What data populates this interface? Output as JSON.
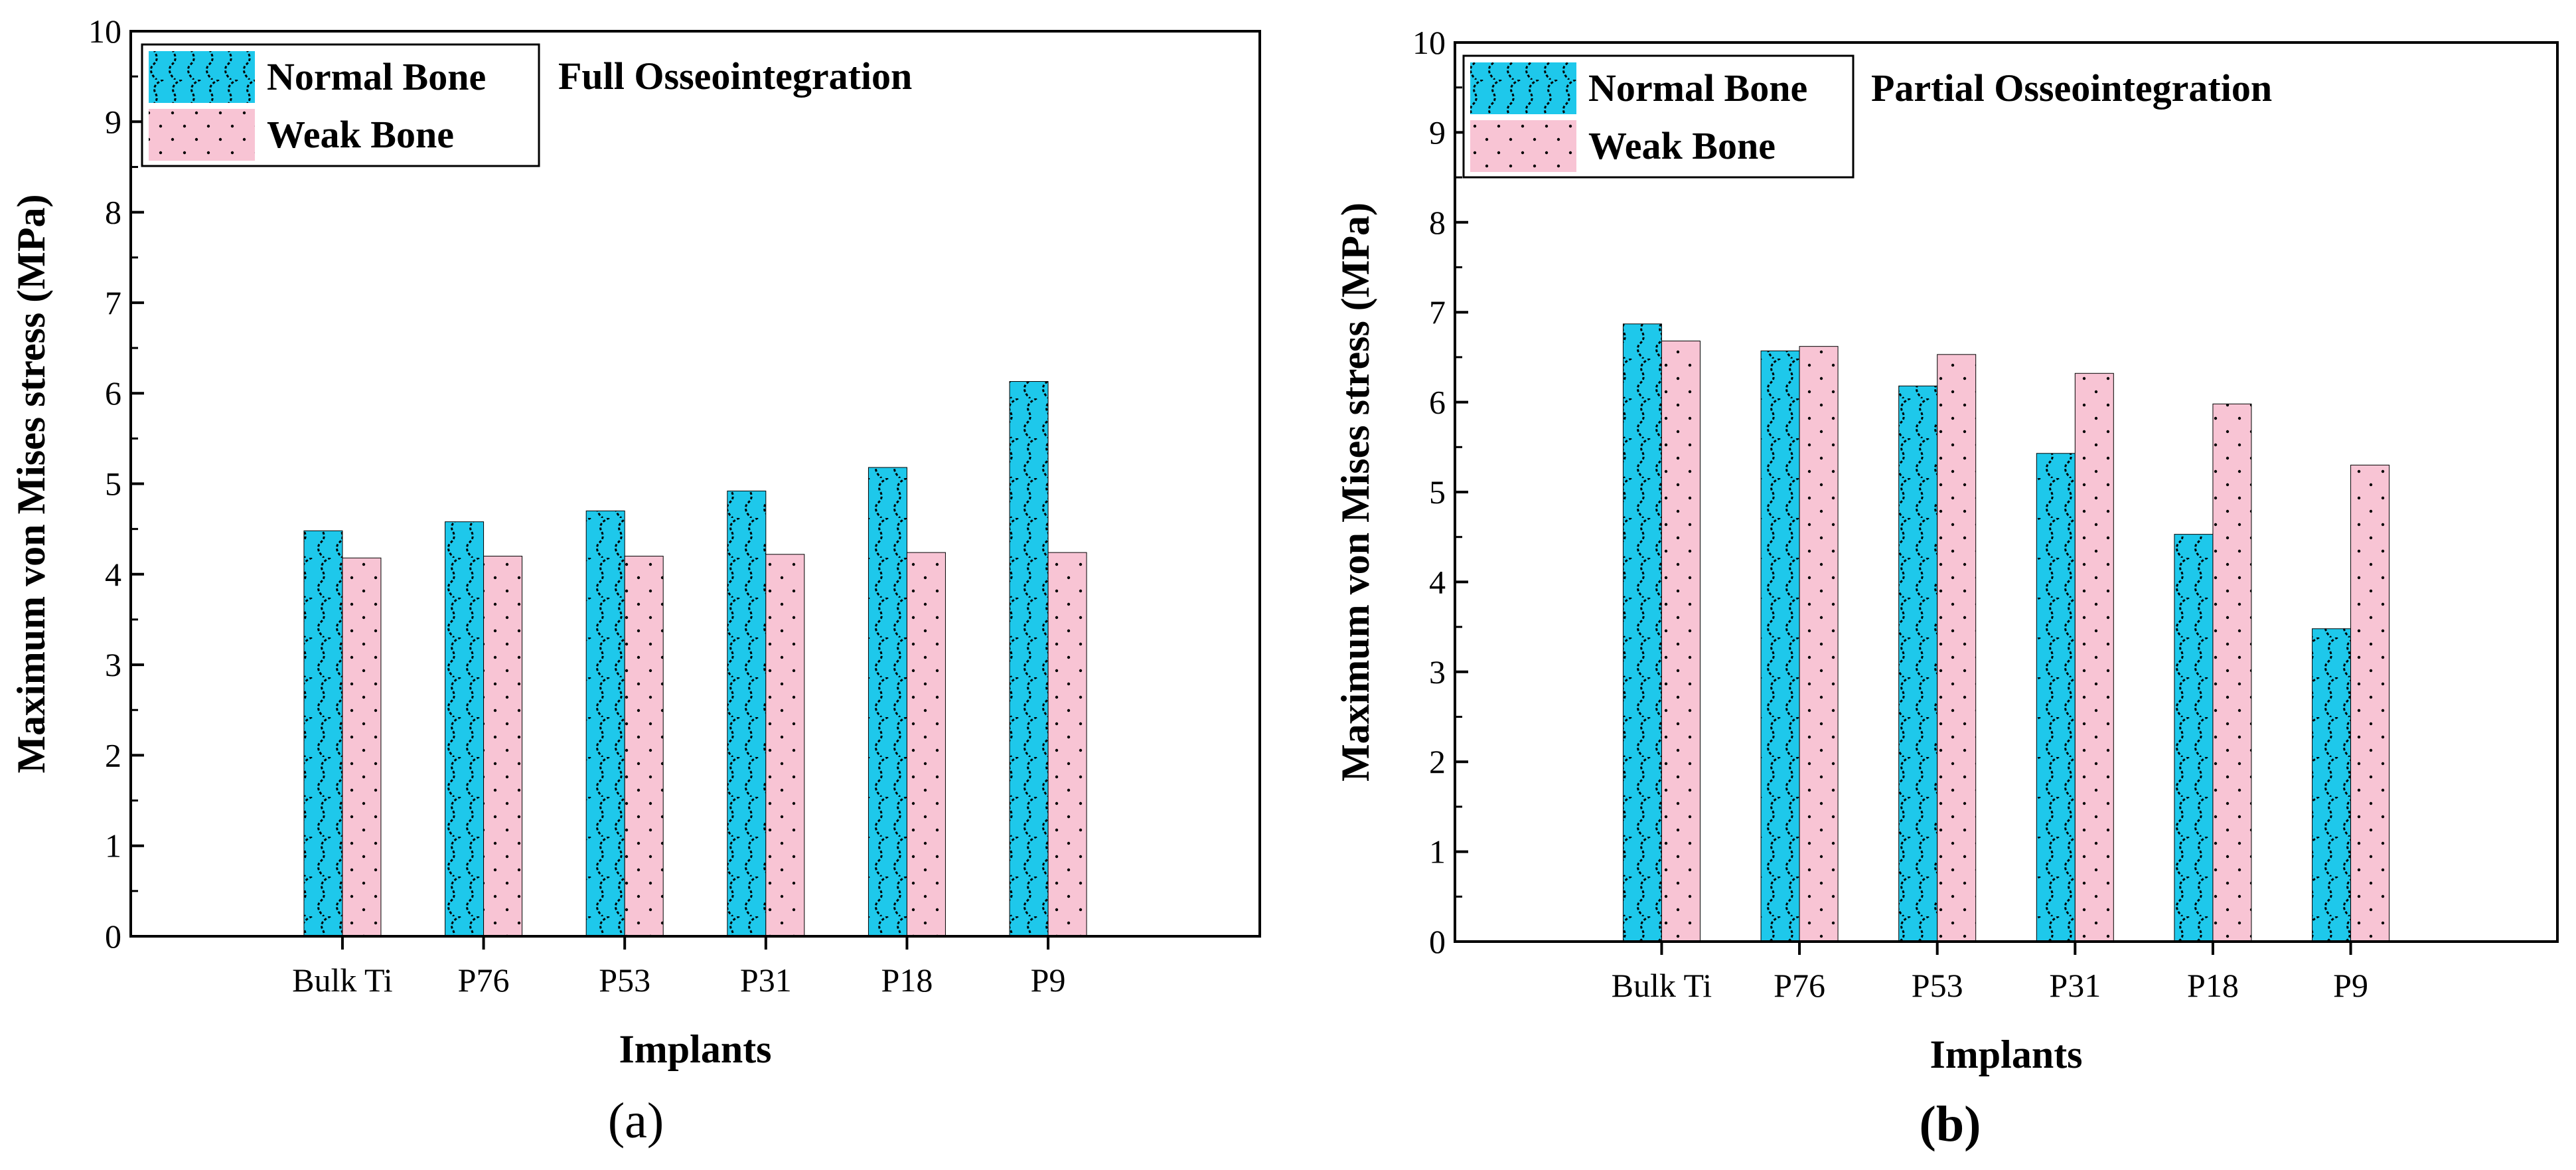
{
  "colors": {
    "normal_bone": "#1ec8eb",
    "weak_bone": "#f8c4d4",
    "axis": "#000000"
  },
  "chart_data": [
    {
      "type": "bar",
      "panel": "a",
      "title": "Full Osseointegration",
      "xlabel": "Implants",
      "ylabel": "Maximum von Mises stress (MPa)",
      "ylim": [
        0,
        10
      ],
      "yticks": [
        "0",
        "1",
        "2",
        "3",
        "4",
        "5",
        "6",
        "7",
        "8",
        "9",
        "10"
      ],
      "categories": [
        "Bulk Ti",
        "P76",
        "P53",
        "P31",
        "P18",
        "P9"
      ],
      "series": [
        {
          "name": "Normal Bone",
          "values": [
            4.48,
            4.58,
            4.7,
            4.92,
            5.18,
            6.13
          ]
        },
        {
          "name": "Weak Bone",
          "values": [
            4.18,
            4.2,
            4.2,
            4.22,
            4.24,
            4.24
          ]
        }
      ],
      "legend": "top-left",
      "grid": false
    },
    {
      "type": "bar",
      "panel": "b",
      "title": "Partial Osseointegration",
      "xlabel": "Implants",
      "ylabel": "Maximum von Mises stress (MPa)",
      "ylim": [
        0,
        10
      ],
      "yticks": [
        "0",
        "1",
        "2",
        "3",
        "4",
        "5",
        "6",
        "7",
        "8",
        "9",
        "10"
      ],
      "categories": [
        "Bulk Ti",
        "P76",
        "P53",
        "P31",
        "P18",
        "P9"
      ],
      "series": [
        {
          "name": "Normal Bone",
          "values": [
            6.87,
            6.57,
            6.18,
            5.43,
            4.53,
            3.48
          ]
        },
        {
          "name": "Weak Bone",
          "values": [
            6.68,
            6.62,
            6.53,
            6.32,
            5.98,
            5.3
          ]
        }
      ],
      "legend": "top-left",
      "grid": false
    }
  ],
  "panel_labels": [
    "(a)",
    "(b)"
  ]
}
